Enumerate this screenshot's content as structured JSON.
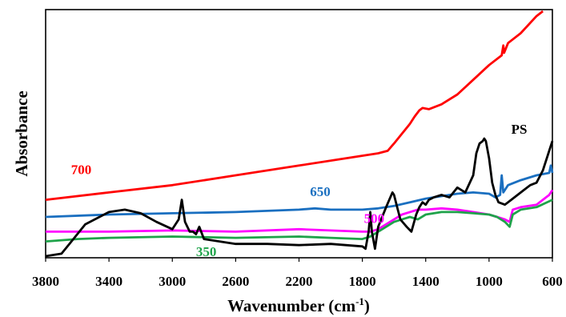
{
  "chart_data": {
    "type": "line",
    "title": "",
    "xlabel": "Wavenumber (cm",
    "xlabel_sup": "-1",
    "xlabel_tail": ")",
    "ylabel": "Absorbance",
    "x_reversed": true,
    "xlim": [
      3800,
      600
    ],
    "ylim": [
      0,
      1
    ],
    "y_ticks_shown": false,
    "grid": false,
    "legend": "none",
    "x_ticks": [
      3800,
      3400,
      3000,
      2600,
      2200,
      1800,
      1400,
      1000,
      600
    ],
    "x_tick_labels": [
      "3800",
      "3400",
      "3000",
      "2600",
      "2200",
      "1800",
      "1400",
      "1000",
      "600"
    ],
    "series": [
      {
        "name": "700",
        "color": "#ff0000",
        "x": [
          3800,
          3400,
          3000,
          2600,
          2200,
          1900,
          1700,
          1640,
          1600,
          1550,
          1500,
          1470,
          1440,
          1420,
          1380,
          1300,
          1200,
          1100,
          1000,
          920,
          910,
          905,
          880,
          800,
          700,
          660
        ],
        "y": [
          0.23,
          0.26,
          0.29,
          0.33,
          0.37,
          0.4,
          0.42,
          0.43,
          0.46,
          0.5,
          0.54,
          0.57,
          0.595,
          0.605,
          0.6,
          0.62,
          0.66,
          0.72,
          0.78,
          0.82,
          0.86,
          0.83,
          0.87,
          0.91,
          0.98,
          1.0
        ]
      },
      {
        "name": "650",
        "color": "#1a6fc0",
        "x": [
          3800,
          3400,
          3000,
          2600,
          2200,
          2100,
          2000,
          1800,
          1700,
          1600,
          1500,
          1400,
          1300,
          1200,
          1100,
          1000,
          960,
          930,
          920,
          910,
          880,
          800,
          700,
          620,
          610,
          600
        ],
        "y": [
          0.16,
          0.17,
          0.175,
          0.18,
          0.19,
          0.195,
          0.19,
          0.19,
          0.195,
          0.205,
          0.22,
          0.235,
          0.245,
          0.255,
          0.26,
          0.255,
          0.24,
          0.25,
          0.33,
          0.26,
          0.29,
          0.31,
          0.33,
          0.34,
          0.37,
          0.34
        ]
      },
      {
        "name": "500",
        "color": "#ff00ff",
        "x": [
          3800,
          3400,
          3000,
          2600,
          2200,
          2000,
          1800,
          1750,
          1700,
          1650,
          1600,
          1550,
          1450,
          1400,
          1300,
          1200,
          1100,
          1000,
          950,
          900,
          870,
          850,
          800,
          700,
          620,
          600
        ],
        "y": [
          0.1,
          0.1,
          0.105,
          0.1,
          0.11,
          0.105,
          0.1,
          0.1,
          0.11,
          0.13,
          0.15,
          0.17,
          0.19,
          0.19,
          0.195,
          0.19,
          0.18,
          0.17,
          0.16,
          0.15,
          0.14,
          0.19,
          0.2,
          0.21,
          0.25,
          0.27
        ]
      },
      {
        "name": "350",
        "color": "#1fa34a",
        "x": [
          3800,
          3600,
          3400,
          3000,
          2600,
          2200,
          2000,
          1800,
          1750,
          1700,
          1650,
          1600,
          1500,
          1450,
          1400,
          1300,
          1200,
          1100,
          1000,
          950,
          900,
          870,
          850,
          800,
          700,
          600
        ],
        "y": [
          0.06,
          0.07,
          0.075,
          0.08,
          0.075,
          0.08,
          0.075,
          0.07,
          0.08,
          0.1,
          0.12,
          0.14,
          0.16,
          0.15,
          0.17,
          0.18,
          0.18,
          0.175,
          0.17,
          0.16,
          0.14,
          0.12,
          0.17,
          0.19,
          0.2,
          0.23
        ]
      },
      {
        "name": "PS",
        "color": "#000000",
        "x": [
          3800,
          3700,
          3650,
          3550,
          3400,
          3300,
          3200,
          3100,
          3000,
          2960,
          2940,
          2920,
          2890,
          2870,
          2850,
          2830,
          2800,
          2600,
          2400,
          2200,
          2000,
          1800,
          1780,
          1760,
          1750,
          1740,
          1720,
          1700,
          1650,
          1610,
          1600,
          1580,
          1560,
          1520,
          1490,
          1460,
          1440,
          1420,
          1400,
          1380,
          1350,
          1300,
          1250,
          1200,
          1150,
          1100,
          1080,
          1060,
          1040,
          1030,
          1020,
          1000,
          980,
          960,
          940,
          900,
          860,
          820,
          780,
          740,
          700,
          660,
          620,
          600
        ],
        "y": [
          0.0,
          0.01,
          0.05,
          0.13,
          0.18,
          0.19,
          0.175,
          0.14,
          0.11,
          0.15,
          0.23,
          0.14,
          0.1,
          0.1,
          0.09,
          0.12,
          0.07,
          0.05,
          0.05,
          0.045,
          0.05,
          0.04,
          0.03,
          0.1,
          0.18,
          0.1,
          0.03,
          0.12,
          0.2,
          0.26,
          0.25,
          0.2,
          0.15,
          0.12,
          0.1,
          0.17,
          0.2,
          0.22,
          0.21,
          0.23,
          0.24,
          0.25,
          0.24,
          0.28,
          0.26,
          0.33,
          0.42,
          0.46,
          0.47,
          0.48,
          0.47,
          0.4,
          0.3,
          0.25,
          0.22,
          0.21,
          0.23,
          0.25,
          0.27,
          0.29,
          0.3,
          0.35,
          0.43,
          0.47
        ]
      }
    ],
    "annotations": [
      {
        "text": "700",
        "x": 3640,
        "y": 0.335,
        "color": "#ff0000"
      },
      {
        "text": "650",
        "x": 2130,
        "y": 0.245,
        "color": "#1a6fc0"
      },
      {
        "text": "500",
        "x": 1790,
        "y": 0.135,
        "color": "#ff00ff"
      },
      {
        "text": "350",
        "x": 2850,
        "y": 0.0,
        "color": "#1fa34a"
      },
      {
        "text": "PS",
        "x": 860,
        "y": 0.5,
        "color": "#000000"
      }
    ]
  }
}
